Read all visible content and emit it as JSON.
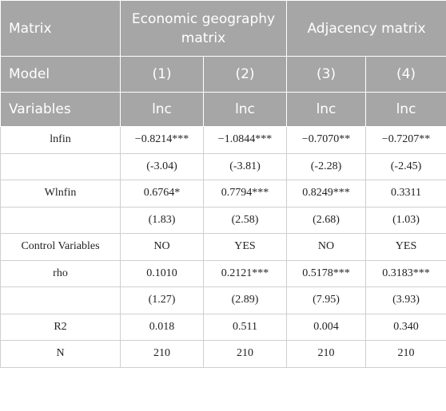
{
  "header": {
    "matrix_label": "Matrix",
    "group1": "Economic geography matrix",
    "group2": "Adjacency matrix",
    "model_label": "Model",
    "models": [
      "(1)",
      "(2)",
      "(3)",
      "(4)"
    ],
    "variables_label": "Variables",
    "dep_vars": [
      "lnc",
      "lnc",
      "lnc",
      "lnc"
    ]
  },
  "rows": [
    {
      "label": "lnfin",
      "cells": [
        "−0.8214***",
        "−1.0844***",
        "−0.7070**",
        "−0.7207**"
      ]
    },
    {
      "label": "",
      "cells": [
        "(-3.04)",
        "(-3.81)",
        "(-2.28)",
        "(-2.45)"
      ]
    },
    {
      "label": "Wlnfin",
      "cells": [
        "0.6764*",
        "0.7794***",
        "0.8249***",
        "0.3311"
      ]
    },
    {
      "label": "",
      "cells": [
        "(1.83)",
        "(2.58)",
        "(2.68)",
        "(1.03)"
      ]
    },
    {
      "label": "Control Variables",
      "cells": [
        "NO",
        "YES",
        "NO",
        "YES"
      ]
    },
    {
      "label": "rho",
      "cells": [
        "0.1010",
        "0.2121***",
        "0.5178***",
        "0.3183***"
      ]
    },
    {
      "label": "",
      "cells": [
        "(1.27)",
        "(2.89)",
        "(7.95)",
        "(3.93)"
      ]
    },
    {
      "label": "R2",
      "cells": [
        "0.018",
        "0.511",
        "0.004",
        "0.340"
      ]
    },
    {
      "label": "N",
      "cells": [
        "210",
        "210",
        "210",
        "210"
      ]
    }
  ]
}
